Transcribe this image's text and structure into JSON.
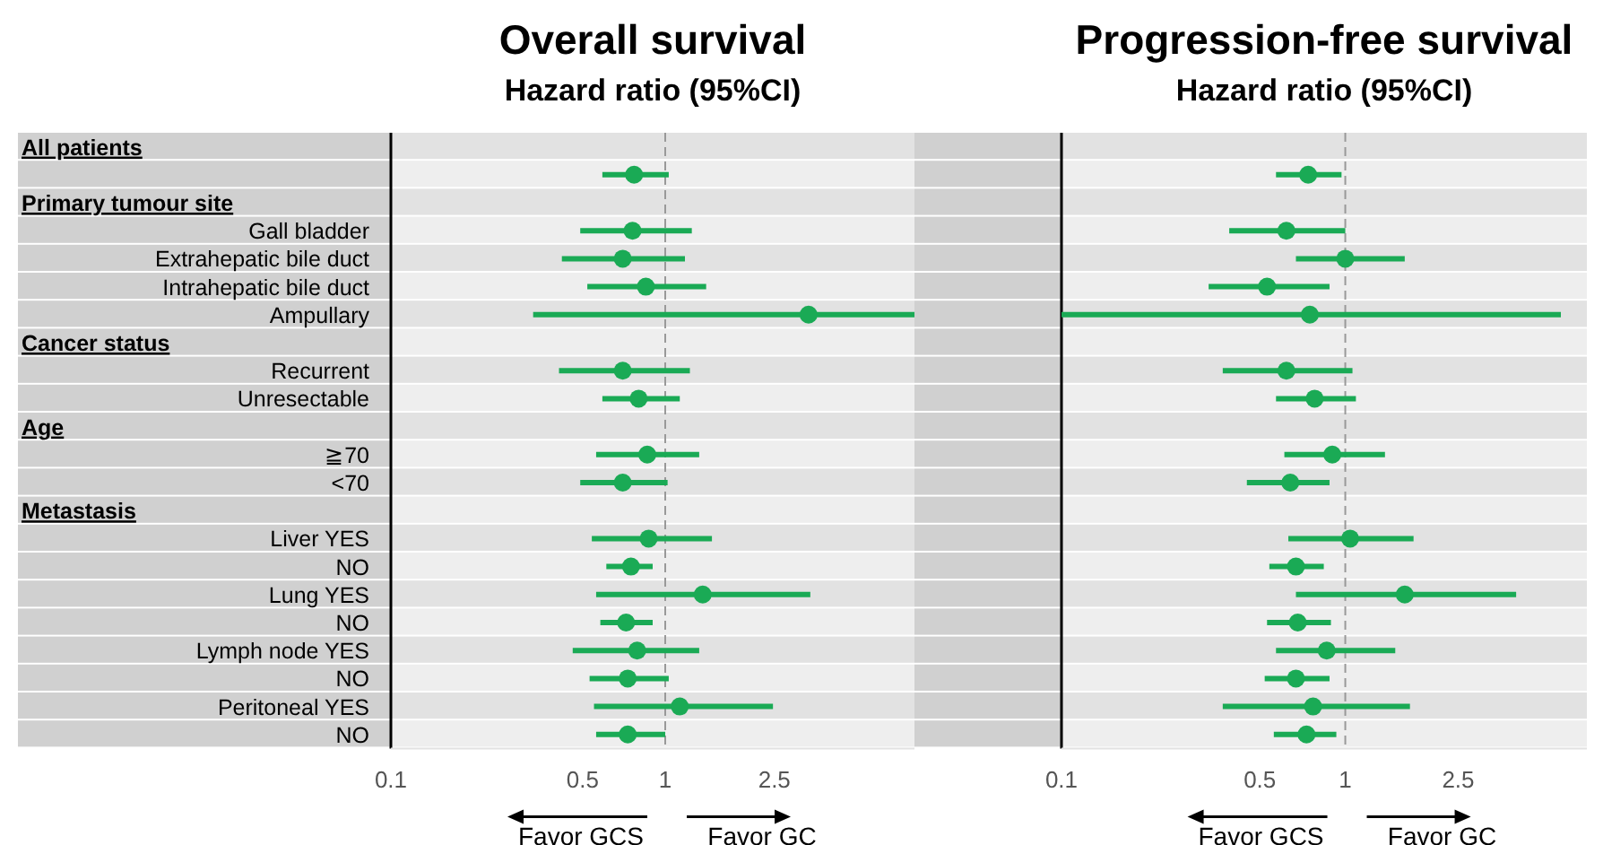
{
  "chart_data": [
    {
      "type": "scatter",
      "title": "Overall survival",
      "subtitle": "Hazard ratio (95%CI)",
      "categories": [
        null,
        null,
        null,
        "Gall bladder",
        "Extrahepatic bile duct",
        "Intrahepatic bile duct",
        "Ampullary",
        null,
        "Recurrent",
        "Unresectable",
        null,
        "≧70",
        "<70",
        null,
        "Liver YES",
        "NO",
        "Lung YES",
        "NO",
        "Lymph node YES",
        "NO",
        "Peritoneal YES",
        "NO"
      ],
      "series": [
        {
          "color": "#1aaa55",
          "values": [
            null,
            0.77,
            null,
            0.76,
            0.7,
            0.85,
            3.33,
            null,
            0.7,
            0.8,
            null,
            0.86,
            0.7,
            null,
            0.87,
            0.75,
            1.37,
            0.72,
            0.79,
            0.73,
            1.13,
            0.73
          ],
          "errors": [
            null,
            [
              0.59,
              1.03
            ],
            null,
            [
              0.49,
              1.25
            ],
            [
              0.42,
              1.18
            ],
            [
              0.52,
              1.41
            ],
            [
              0.33,
              8.1
            ],
            null,
            [
              0.41,
              1.23
            ],
            [
              0.59,
              1.13
            ],
            null,
            [
              0.56,
              1.33
            ],
            [
              0.49,
              1.02
            ],
            null,
            [
              0.54,
              1.48
            ],
            [
              0.61,
              0.9
            ],
            [
              0.56,
              3.38
            ],
            [
              0.58,
              0.9
            ],
            [
              0.46,
              1.33
            ],
            [
              0.53,
              1.03
            ],
            [
              0.55,
              2.47
            ],
            [
              0.56,
              1.0
            ]
          ]
        }
      ],
      "orientation": "horizontal",
      "log": "x",
      "xlim": [
        0.1,
        8.1
      ],
      "xticks": [
        0.1,
        0.5,
        1,
        2.5
      ],
      "marker": "circle",
      "ref_lines": [
        {
          "axis": "x",
          "value": 1,
          "color": "#999999",
          "line_style": "dashed"
        }
      ],
      "annotations": [
        "All patients",
        "Primary tumour site",
        "Cancer status",
        "Age",
        "Metastasis",
        "Favor GCS",
        "Favor GC"
      ]
    },
    {
      "type": "scatter",
      "title": "Progression-free survival",
      "subtitle": "Hazard ratio (95%CI)",
      "categories": [
        null,
        null,
        null,
        null,
        null,
        null,
        null,
        null,
        null,
        null,
        null,
        null,
        null,
        null,
        null,
        null,
        null,
        null,
        null,
        null,
        null,
        null
      ],
      "series": [
        {
          "color": "#1aaa55",
          "values": [
            null,
            0.74,
            null,
            0.62,
            1.0,
            0.53,
            0.75,
            null,
            0.62,
            0.78,
            null,
            0.9,
            0.64,
            null,
            1.04,
            0.67,
            1.62,
            0.68,
            0.86,
            0.67,
            0.77,
            0.73
          ],
          "errors": [
            null,
            [
              0.57,
              0.97
            ],
            null,
            [
              0.39,
              1.0
            ],
            [
              0.67,
              1.62
            ],
            [
              0.33,
              0.88
            ],
            [
              0.1,
              5.75
            ],
            null,
            [
              0.37,
              1.06
            ],
            [
              0.57,
              1.09
            ],
            null,
            [
              0.61,
              1.38
            ],
            [
              0.45,
              0.88
            ],
            null,
            [
              0.63,
              1.74
            ],
            [
              0.54,
              0.84
            ],
            [
              0.67,
              4.0
            ],
            [
              0.53,
              0.89
            ],
            [
              0.57,
              1.5
            ],
            [
              0.52,
              0.88
            ],
            [
              0.37,
              1.69
            ],
            [
              0.56,
              0.93
            ]
          ]
        }
      ],
      "orientation": "horizontal",
      "log": "x",
      "xlim": [
        0.1,
        7.1
      ],
      "xticks": [
        0.1,
        0.5,
        1,
        2.5
      ],
      "marker": "circle",
      "tick_labels": "x",
      "ref_lines": [
        {
          "axis": "x",
          "value": 1,
          "color": "#999999",
          "line_style": "dashed"
        }
      ],
      "annotations": [
        "Favor GCS",
        "Favor GC"
      ]
    }
  ]
}
